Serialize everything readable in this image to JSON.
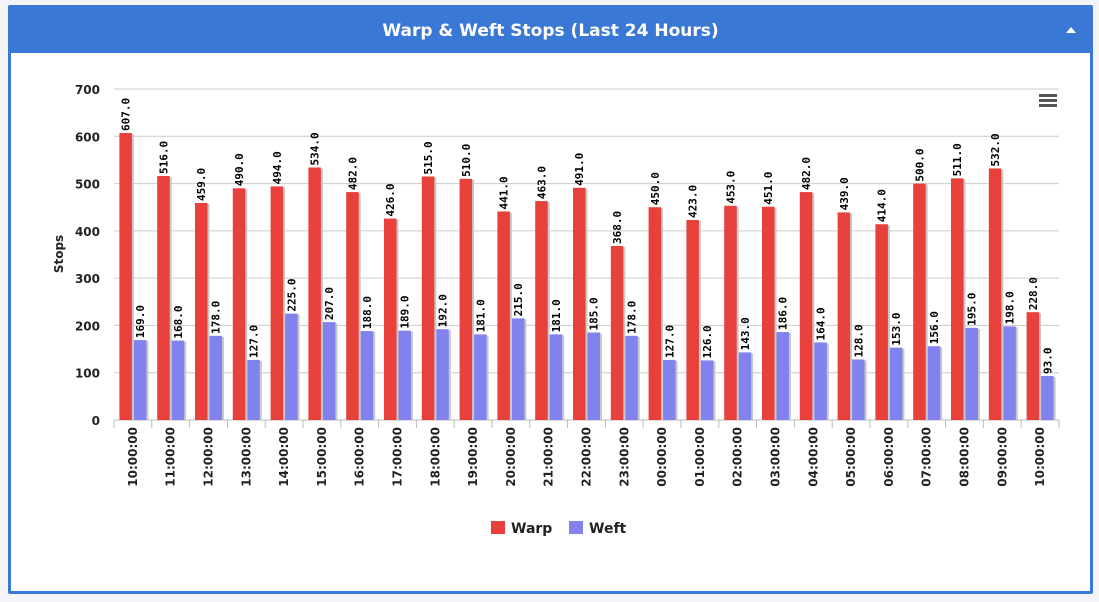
{
  "panel": {
    "title": "Warp & Weft Stops (Last 24 Hours)",
    "header_color": "#3a78d6",
    "collapse_icon": "caret-up-icon"
  },
  "chart_menu_icon": "hamburger-menu-icon",
  "chart_data": {
    "type": "bar",
    "title": "",
    "xlabel": "",
    "ylabel": "Stops",
    "ylim": [
      0,
      700
    ],
    "yticks": [
      0,
      100,
      200,
      300,
      400,
      500,
      600,
      700
    ],
    "grid": true,
    "legend_position": "bottom-center",
    "categories": [
      "10:00:00",
      "11:00:00",
      "12:00:00",
      "13:00:00",
      "14:00:00",
      "15:00:00",
      "16:00:00",
      "17:00:00",
      "18:00:00",
      "19:00:00",
      "20:00:00",
      "21:00:00",
      "22:00:00",
      "23:00:00",
      "00:00:00",
      "01:00:00",
      "02:00:00",
      "03:00:00",
      "04:00:00",
      "05:00:00",
      "06:00:00",
      "07:00:00",
      "08:00:00",
      "09:00:00",
      "10:00:00"
    ],
    "series": [
      {
        "name": "Warp",
        "color": "#e8403a",
        "values": [
          607,
          516,
          459,
          490,
          494,
          534,
          482,
          426,
          515,
          510,
          441,
          463,
          491,
          368,
          450,
          423,
          453,
          451,
          482,
          439,
          414,
          500,
          511,
          532,
          228
        ],
        "labels": [
          "607.0",
          "516.0",
          "459.0",
          "490.0",
          "494.0",
          "534.0",
          "482.0",
          "426.0",
          "515.0",
          "510.0",
          "441.0",
          "463.0",
          "491.0",
          "368.0",
          "450.0",
          "423.0",
          "453.0",
          "451.0",
          "482.0",
          "439.0",
          "414.0",
          "500.0",
          "511.0",
          "532.0",
          "228.0"
        ]
      },
      {
        "name": "Weft",
        "color": "#8282ef",
        "values": [
          169,
          168,
          178,
          127,
          225,
          207,
          188,
          189,
          192,
          181,
          215,
          181,
          185,
          178,
          127,
          126,
          143,
          186,
          164,
          128,
          153,
          156,
          195,
          198,
          93
        ],
        "labels": [
          "169.0",
          "168.0",
          "178.0",
          "127.0",
          "225.0",
          "207.0",
          "188.0",
          "189.0",
          "192.0",
          "181.0",
          "215.0",
          "181.0",
          "185.0",
          "178.0",
          "127.0",
          "126.0",
          "143.0",
          "186.0",
          "164.0",
          "128.0",
          "153.0",
          "156.0",
          "195.0",
          "198.0",
          "93.0"
        ]
      }
    ]
  }
}
